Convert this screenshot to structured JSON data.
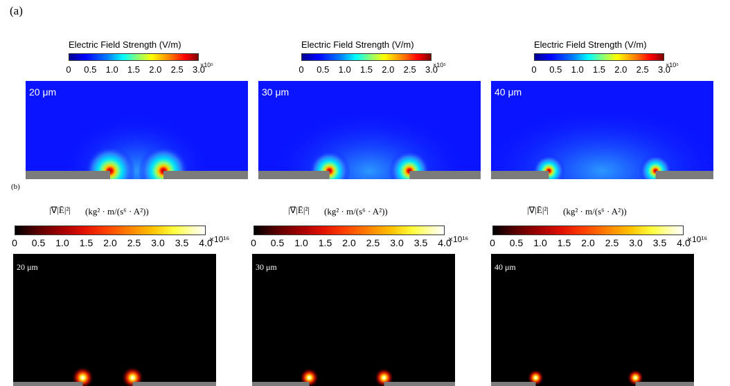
{
  "panel_a_label": "(a)",
  "panel_b_label": "(b)",
  "chart_data": [
    {
      "type": "heatmap",
      "panel": "a",
      "title": "Electric Field Strength (V/m)",
      "colorbar_ticks": [
        "0",
        "0.5",
        "1.0",
        "1.5",
        "2.0",
        "2.5",
        "3.0"
      ],
      "colorbar_range": [
        0,
        300000
      ],
      "colorbar_multiplier": "×10⁵",
      "colormap": "rainbow",
      "maps": [
        {
          "label": "20 μm",
          "electrode_gap_um": 20
        },
        {
          "label": "30 μm",
          "electrode_gap_um": 30
        },
        {
          "label": "40 μm",
          "electrode_gap_um": 40
        }
      ]
    },
    {
      "type": "heatmap",
      "panel": "b",
      "title_symbol": "|∇|Ē|²|",
      "title_units": "(kg² · m/(s⁶ · A²))",
      "colorbar_ticks": [
        "0",
        "0.5",
        "1.0",
        "1.5",
        "2.0",
        "2.5",
        "3.0",
        "3.5",
        "4.0"
      ],
      "colorbar_range": [
        0,
        4e+16
      ],
      "colorbar_multiplier": "×10¹⁶",
      "colormap": "thermal",
      "maps": [
        {
          "label": "20 μm",
          "electrode_gap_um": 20
        },
        {
          "label": "30 μm",
          "electrode_gap_um": 30
        },
        {
          "label": "40 μm",
          "electrode_gap_um": 40
        }
      ]
    }
  ]
}
